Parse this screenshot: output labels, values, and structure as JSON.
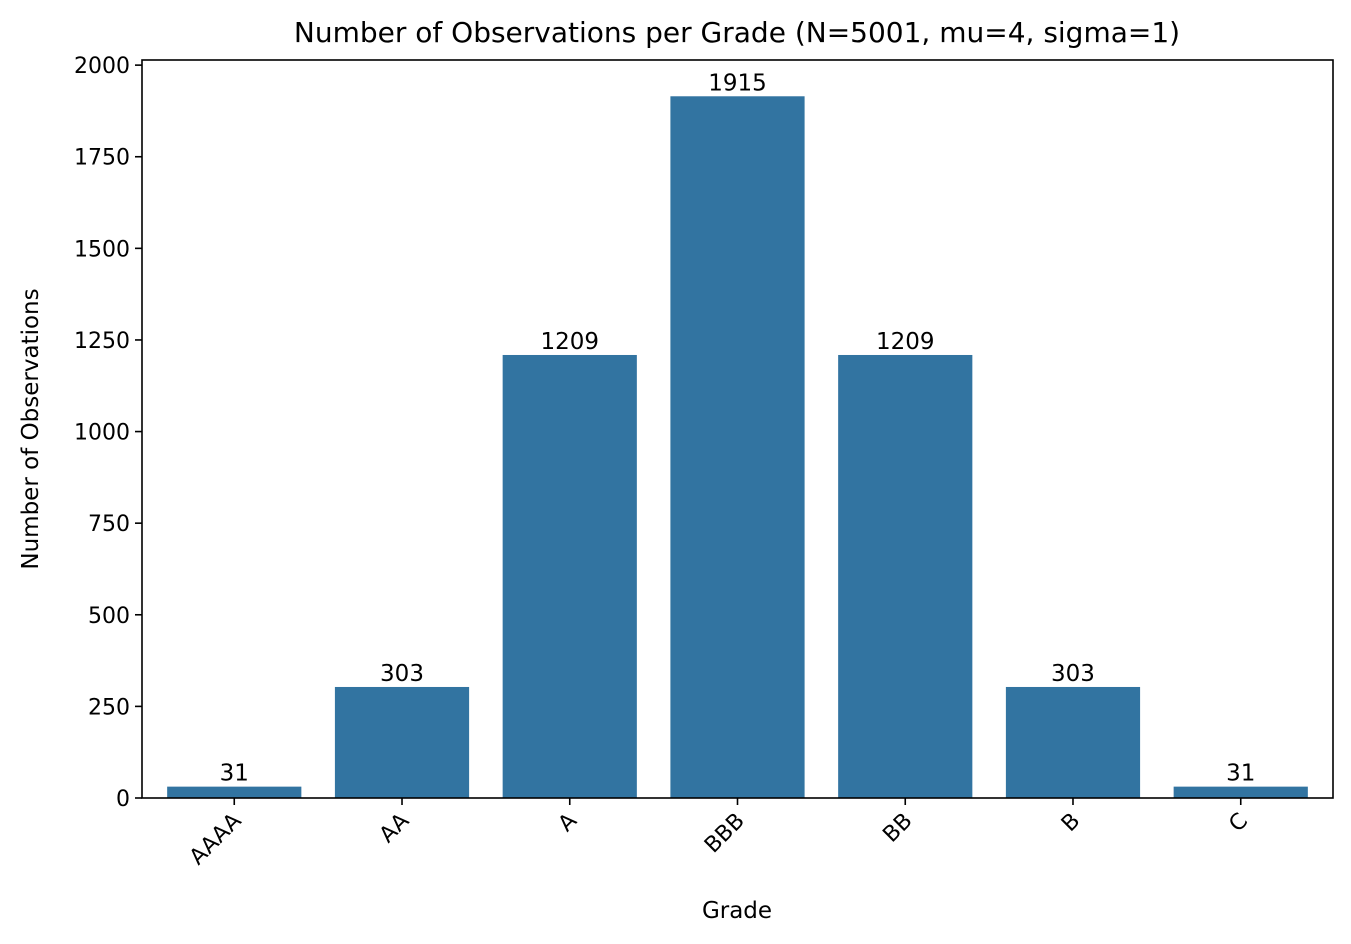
{
  "chart_data": {
    "type": "bar",
    "title": "Number of Observations per Grade (N=5001, mu=4, sigma=1)",
    "xlabel": "Grade",
    "ylabel": "Number of Observations",
    "categories": [
      "AAAA",
      "AA",
      "A",
      "BBB",
      "BB",
      "B",
      "C"
    ],
    "values": [
      31,
      303,
      1209,
      1915,
      1209,
      303,
      31
    ],
    "data_labels": [
      "31",
      "303",
      "1209",
      "1915",
      "1209",
      "303",
      "31"
    ],
    "ylim": [
      0,
      2014
    ],
    "yticks": [
      0,
      250,
      500,
      750,
      1000,
      1250,
      1500,
      1750,
      2000
    ],
    "ytick_labels": [
      "0",
      "250",
      "500",
      "750",
      "1000",
      "1250",
      "1500",
      "1750",
      "2000"
    ],
    "xtick_rotation_deg": 45,
    "grid": false,
    "legend": "none",
    "bar_color": "#3274a1"
  }
}
